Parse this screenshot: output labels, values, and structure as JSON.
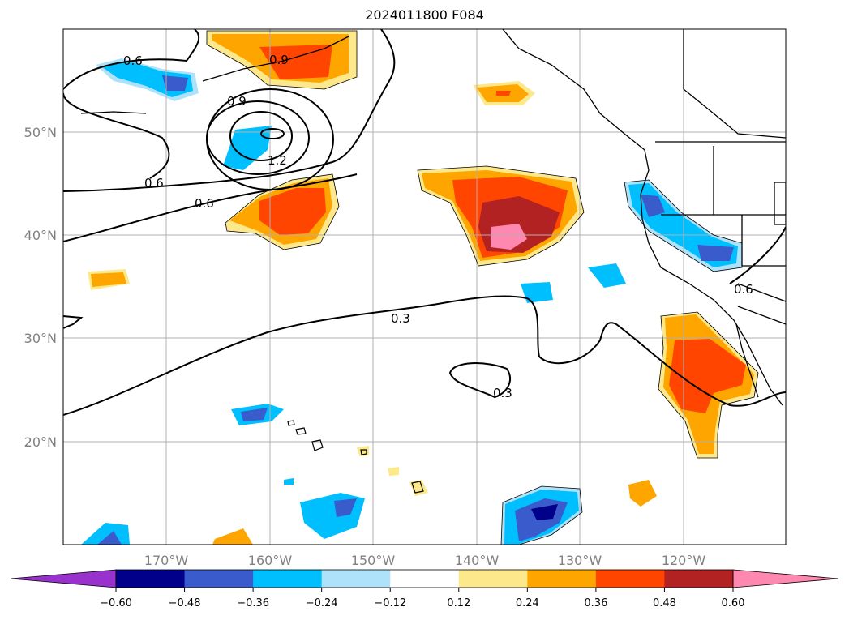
{
  "title": "2024011800 F084",
  "map": {
    "lat_ticks": [
      "50°N",
      "40°N",
      "30°N",
      "20°N"
    ],
    "lon_ticks": [
      "170°W",
      "160°W",
      "150°W",
      "140°W",
      "130°W",
      "120°W"
    ],
    "grid": true,
    "contour_labels": [
      "0.6",
      "0.9",
      "0.9",
      "1.2",
      "0.6",
      "0.6",
      "0.3",
      "0.3",
      "0.6"
    ]
  },
  "colorbar": {
    "ticks": [
      "−0.60",
      "−0.48",
      "−0.36",
      "−0.24",
      "−0.12",
      "0.12",
      "0.24",
      "0.36",
      "0.48",
      "0.60"
    ],
    "colors": [
      "#9932cc",
      "#00008b",
      "#3a5bcc",
      "#00bfff",
      "#aee2fb",
      "#ffffff",
      "#fde98c",
      "#ffa500",
      "#ff4500",
      "#b22222",
      "#ff88b0"
    ]
  }
}
